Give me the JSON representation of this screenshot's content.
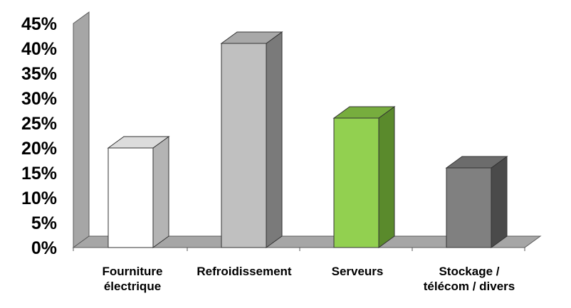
{
  "chart_data": {
    "type": "bar",
    "style": "3d-columns",
    "categories": [
      [
        "Fourniture",
        "électrique"
      ],
      [
        "Refroidissement"
      ],
      [
        "Serveurs"
      ],
      [
        "Stockage /",
        "télécom / divers"
      ]
    ],
    "values": [
      20,
      41,
      26,
      16
    ],
    "y_ticks": [
      "0%",
      "5%",
      "10%",
      "15%",
      "20%",
      "25%",
      "30%",
      "35%",
      "40%",
      "45%"
    ],
    "ylim": [
      0,
      45
    ],
    "unit": "%",
    "grid": false,
    "legend": "none",
    "bar_colors": [
      {
        "front": "#ffffff",
        "side": "#b4b4b4",
        "top": "#dcdcdc"
      },
      {
        "front": "#c0c0c0",
        "side": "#7a7a7a",
        "top": "#a8a8a8"
      },
      {
        "front": "#92d050",
        "side": "#5a8a2c",
        "top": "#77ad3e"
      },
      {
        "front": "#808080",
        "side": "#4a4a4a",
        "top": "#6c6c6c"
      }
    ],
    "wall_color": "#a6a6a6",
    "floor_color": "#a6a6a6"
  }
}
